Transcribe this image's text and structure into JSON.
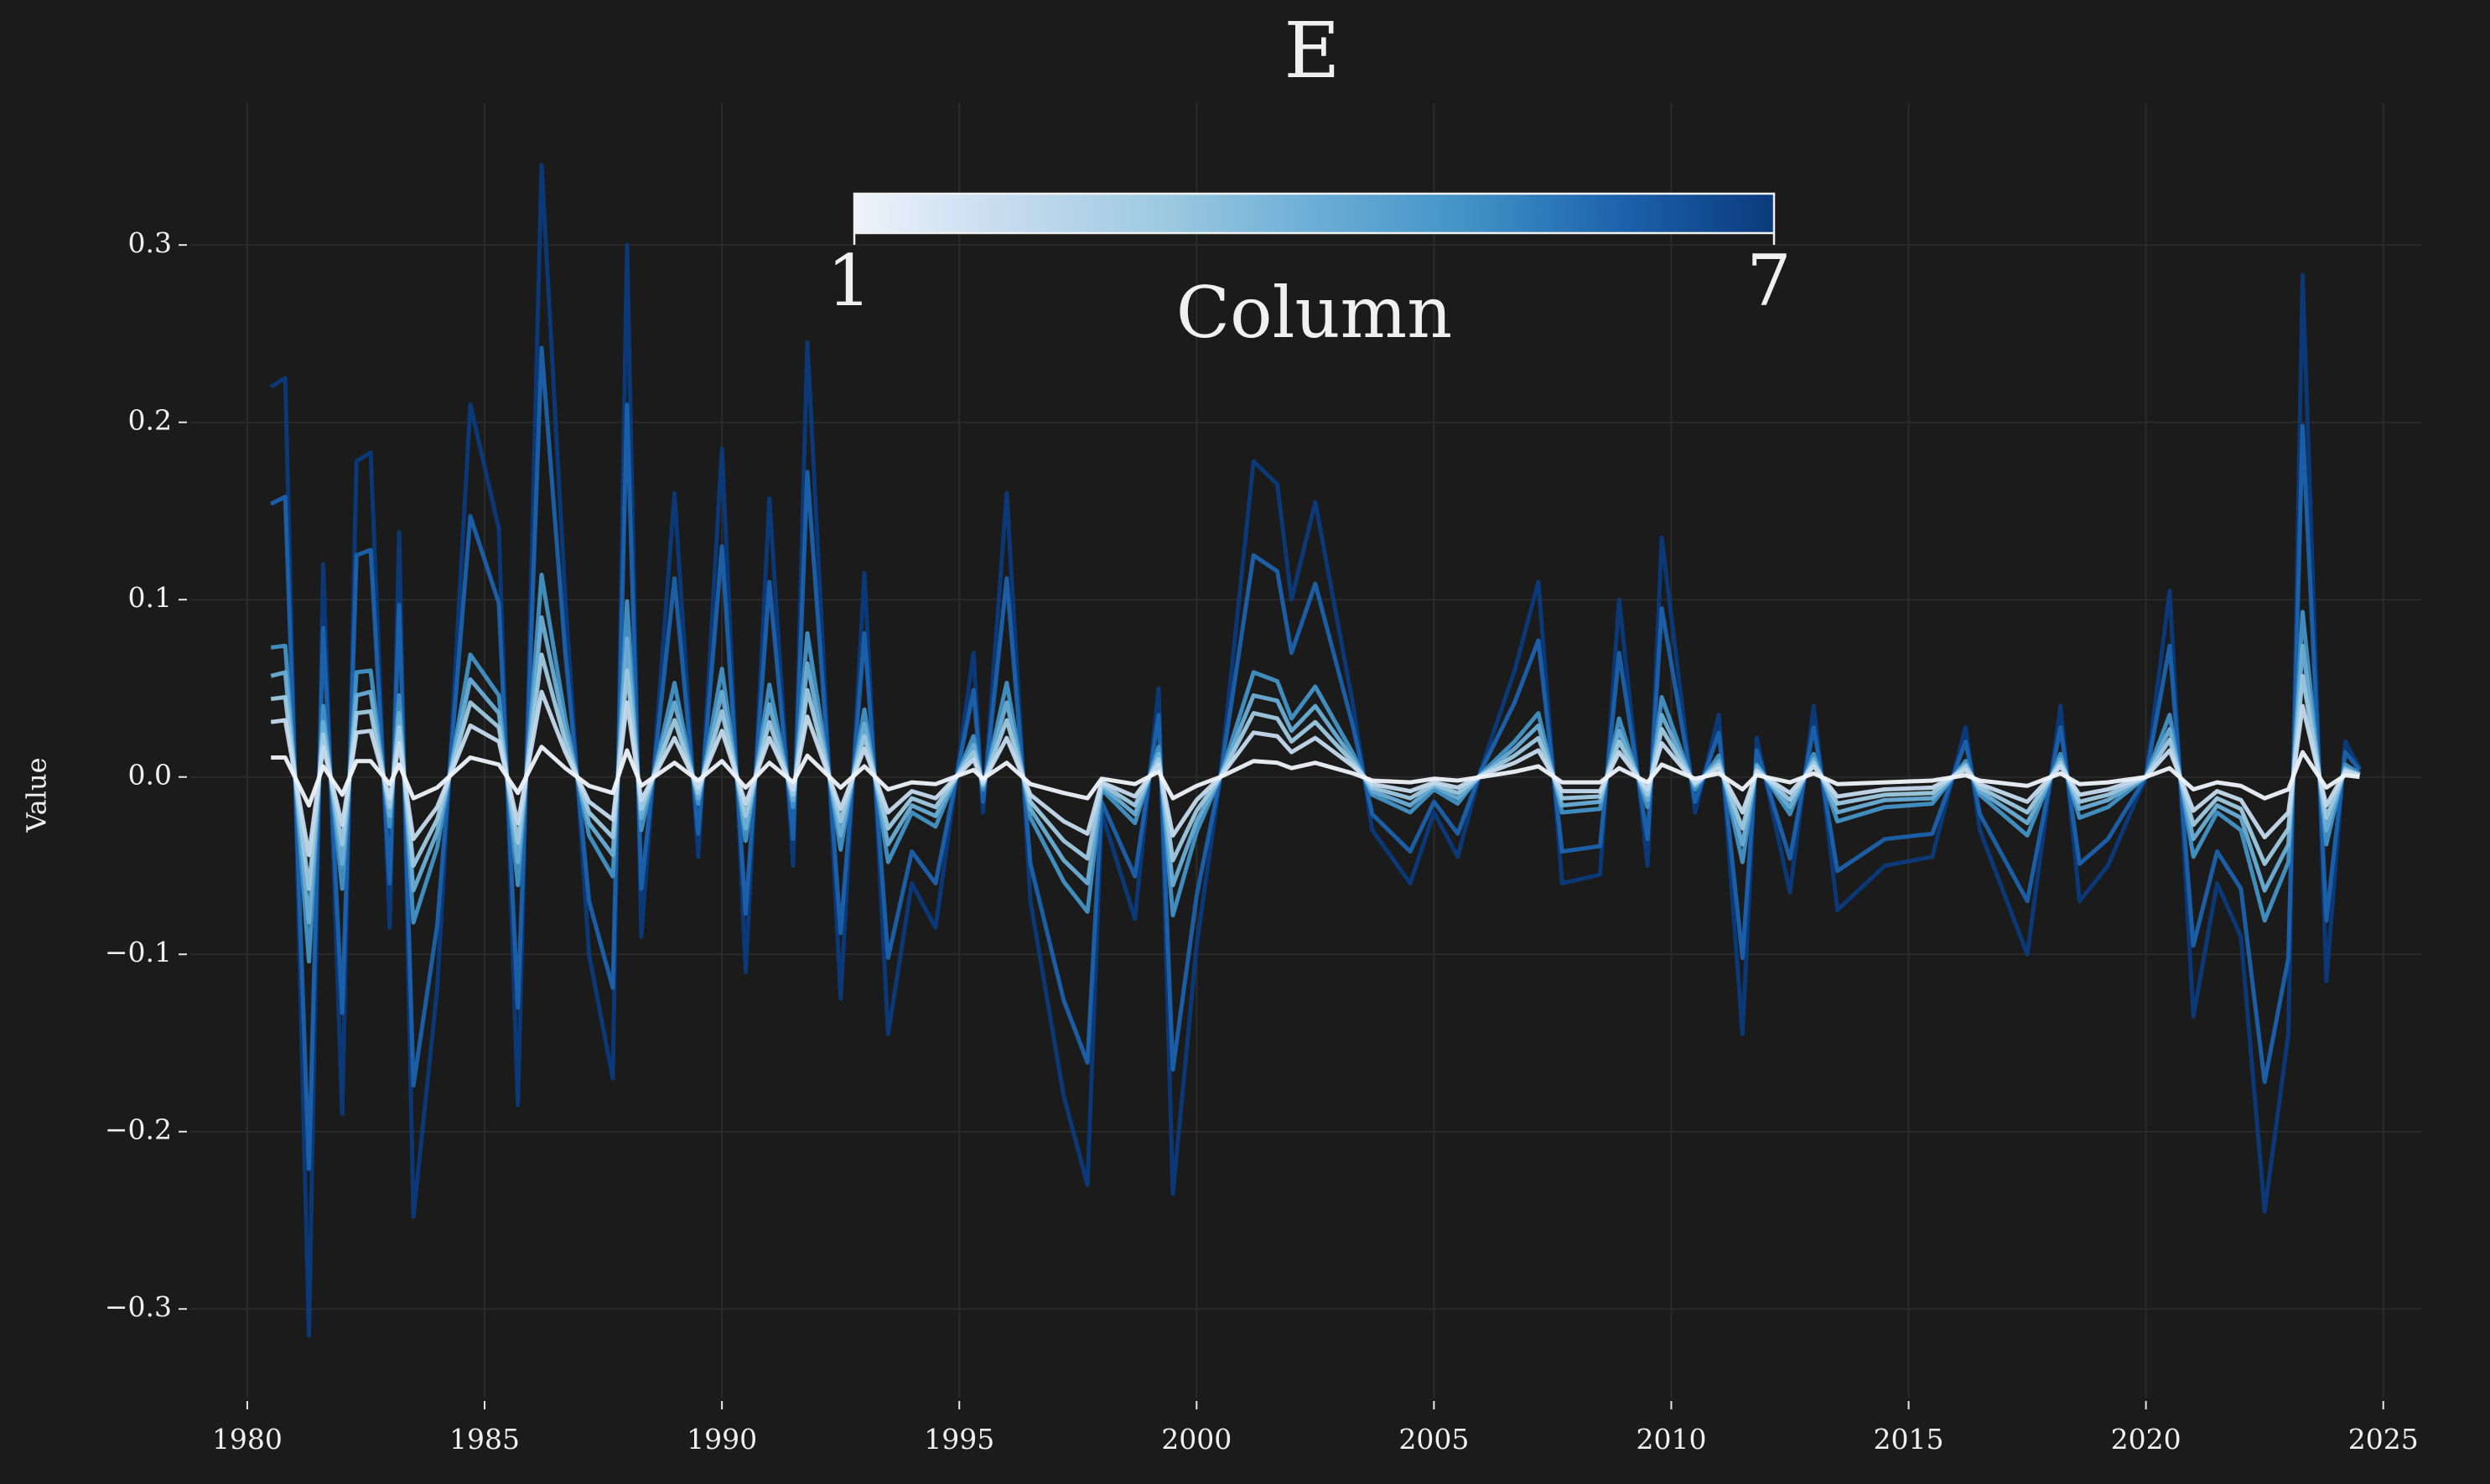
{
  "chart_data": {
    "type": "line",
    "title": "E",
    "ylabel": "Value",
    "x": [
      1980.5,
      1980.8,
      1981.3,
      1981.6,
      1982.0,
      1982.3,
      1982.6,
      1983.0,
      1983.2,
      1983.5,
      1984.0,
      1984.7,
      1985.3,
      1985.7,
      1986.2,
      1986.7,
      1987.2,
      1987.7,
      1988.0,
      1988.3,
      1989.0,
      1989.5,
      1990.0,
      1990.5,
      1991.0,
      1991.5,
      1991.8,
      1992.5,
      1993.0,
      1993.5,
      1994.0,
      1994.5,
      1995.3,
      1995.5,
      1996.0,
      1996.5,
      1997.2,
      1997.7,
      1998.0,
      1998.7,
      1999.2,
      1999.5,
      2000.0,
      2000.5,
      2001.2,
      2001.7,
      2002.0,
      2002.5,
      2003.3,
      2003.7,
      2004.5,
      2005.0,
      2005.5,
      2006.0,
      2006.7,
      2007.2,
      2007.7,
      2008.5,
      2008.9,
      2009.5,
      2009.8,
      2010.5,
      2011.0,
      2011.5,
      2011.8,
      2012.5,
      2013.0,
      2013.5,
      2014.5,
      2015.5,
      2016.2,
      2016.5,
      2017.5,
      2018.2,
      2018.6,
      2019.2,
      2020.0,
      2020.5,
      2021.0,
      2021.5,
      2022.0,
      2022.5,
      2023.0,
      2023.3,
      2023.8,
      2024.2,
      2024.5
    ],
    "series": [
      {
        "color": "#eef4fb",
        "values": [
          0.011,
          0.011,
          -0.016,
          0.006,
          -0.01,
          0.009,
          0.009,
          -0.004,
          0.007,
          -0.012,
          -0.006,
          0.011,
          0.007,
          -0.009,
          0.017,
          0.005,
          -0.005,
          -0.009,
          0.015,
          -0.005,
          0.008,
          -0.002,
          0.009,
          -0.006,
          0.008,
          -0.003,
          0.012,
          -0.006,
          0.006,
          -0.007,
          -0.003,
          -0.004,
          0.004,
          -0.001,
          0.008,
          -0.004,
          -0.009,
          -0.012,
          -0.001,
          -0.004,
          0.003,
          -0.012,
          -0.005,
          0,
          0.009,
          0.008,
          0.005,
          0.008,
          0.002,
          -0.002,
          -0.003,
          -0.001,
          -0.002,
          0,
          0.003,
          0.006,
          -0.003,
          -0.003,
          0.005,
          -0.003,
          0.007,
          -0.001,
          0.002,
          -0.007,
          0.001,
          -0.003,
          0.002,
          -0.004,
          -0.003,
          -0.002,
          0.001,
          -0.002,
          -0.005,
          0.002,
          -0.004,
          -0.003,
          0,
          0.005,
          -0.007,
          -0.003,
          -0.005,
          -0.012,
          -0.007,
          0.014,
          -0.006,
          0.001,
          0
        ]
      },
      {
        "color": "#c6dbef",
        "values": [
          0.031,
          0.032,
          -0.044,
          0.017,
          -0.027,
          0.025,
          0.026,
          -0.012,
          0.019,
          -0.035,
          -0.017,
          0.029,
          0.02,
          -0.026,
          0.048,
          0.014,
          -0.014,
          -0.024,
          0.042,
          -0.013,
          0.022,
          -0.006,
          0.026,
          -0.015,
          0.022,
          -0.007,
          0.034,
          -0.018,
          0.016,
          -0.02,
          -0.008,
          -0.012,
          0.01,
          -0.003,
          0.022,
          -0.01,
          -0.025,
          -0.032,
          -0.003,
          -0.011,
          0.007,
          -0.033,
          -0.013,
          0,
          0.025,
          0.023,
          0.014,
          0.022,
          0.006,
          -0.004,
          -0.008,
          -0.003,
          -0.006,
          0.001,
          0.008,
          0.015,
          -0.008,
          -0.008,
          0.014,
          -0.007,
          0.019,
          -0.003,
          0.005,
          -0.02,
          0.003,
          -0.009,
          0.006,
          -0.011,
          -0.007,
          -0.006,
          0.004,
          -0.004,
          -0.014,
          0.006,
          -0.01,
          -0.007,
          0,
          0.015,
          -0.019,
          -0.008,
          -0.013,
          -0.034,
          -0.02,
          0.04,
          -0.016,
          0.003,
          0.001
        ]
      },
      {
        "color": "#9ecae1",
        "values": [
          0.044,
          0.045,
          -0.063,
          0.024,
          -0.038,
          0.036,
          0.037,
          -0.017,
          0.028,
          -0.05,
          -0.024,
          0.042,
          0.028,
          -0.037,
          0.069,
          0.02,
          -0.02,
          -0.034,
          0.06,
          -0.018,
          0.032,
          -0.009,
          0.037,
          -0.022,
          0.031,
          -0.01,
          0.049,
          -0.025,
          0.023,
          -0.029,
          -0.012,
          -0.017,
          0.014,
          -0.004,
          0.032,
          -0.014,
          -0.036,
          -0.046,
          -0.004,
          -0.016,
          0.01,
          -0.047,
          -0.019,
          0,
          0.036,
          0.033,
          0.02,
          0.031,
          0.008,
          -0.006,
          -0.012,
          -0.004,
          -0.009,
          0.001,
          0.012,
          0.022,
          -0.012,
          -0.011,
          0.02,
          -0.01,
          0.027,
          -0.004,
          0.007,
          -0.029,
          0.004,
          -0.013,
          0.008,
          -0.015,
          -0.01,
          -0.009,
          0.006,
          -0.006,
          -0.02,
          0.008,
          -0.014,
          -0.01,
          0,
          0.021,
          -0.027,
          -0.012,
          -0.018,
          -0.049,
          -0.029,
          0.057,
          -0.023,
          0.004,
          0.001
        ]
      },
      {
        "color": "#6baed6",
        "values": [
          0.057,
          0.059,
          -0.082,
          0.031,
          -0.049,
          0.046,
          0.048,
          -0.022,
          0.036,
          -0.064,
          -0.031,
          0.055,
          0.036,
          -0.048,
          0.09,
          0.026,
          -0.026,
          -0.044,
          0.078,
          -0.023,
          0.042,
          -0.012,
          0.048,
          -0.029,
          0.041,
          -0.013,
          0.064,
          -0.033,
          0.03,
          -0.038,
          -0.016,
          -0.022,
          0.018,
          -0.005,
          0.042,
          -0.018,
          -0.047,
          -0.06,
          -0.005,
          -0.021,
          0.013,
          -0.061,
          -0.025,
          0,
          0.046,
          0.043,
          0.026,
          0.04,
          0.01,
          -0.008,
          -0.016,
          -0.005,
          -0.012,
          0.001,
          0.016,
          0.029,
          -0.016,
          -0.014,
          0.026,
          -0.013,
          0.035,
          -0.005,
          0.009,
          -0.038,
          0.006,
          -0.017,
          0.01,
          -0.02,
          -0.013,
          -0.012,
          0.007,
          -0.008,
          -0.026,
          0.01,
          -0.018,
          -0.013,
          0,
          0.027,
          -0.035,
          -0.016,
          -0.023,
          -0.064,
          -0.038,
          0.074,
          -0.03,
          0.005,
          0.001
        ]
      },
      {
        "color": "#4292c6",
        "values": [
          0.073,
          0.074,
          -0.104,
          0.04,
          -0.063,
          0.059,
          0.06,
          -0.028,
          0.046,
          -0.082,
          -0.04,
          0.069,
          0.046,
          -0.061,
          0.114,
          0.033,
          -0.033,
          -0.056,
          0.099,
          -0.03,
          0.053,
          -0.015,
          0.061,
          -0.036,
          0.052,
          -0.017,
          0.081,
          -0.041,
          0.038,
          -0.048,
          -0.02,
          -0.028,
          0.023,
          -0.007,
          0.053,
          -0.023,
          -0.059,
          -0.076,
          -0.007,
          -0.026,
          0.017,
          -0.078,
          -0.031,
          0,
          0.059,
          0.054,
          0.033,
          0.051,
          0.013,
          -0.01,
          -0.02,
          -0.007,
          -0.015,
          0.002,
          0.02,
          0.036,
          -0.02,
          -0.018,
          0.033,
          -0.017,
          0.045,
          -0.007,
          0.012,
          -0.048,
          0.007,
          -0.021,
          0.013,
          -0.025,
          -0.017,
          -0.015,
          0.009,
          -0.01,
          -0.033,
          0.013,
          -0.023,
          -0.017,
          0,
          0.035,
          -0.045,
          -0.02,
          -0.03,
          -0.081,
          -0.048,
          0.093,
          -0.038,
          0.007,
          0.002
        ]
      },
      {
        "color": "#1c62ad",
        "values": [
          0.154,
          0.158,
          -0.221,
          0.084,
          -0.133,
          0.125,
          0.128,
          -0.06,
          0.097,
          -0.174,
          -0.084,
          0.147,
          0.098,
          -0.13,
          0.242,
          0.07,
          -0.07,
          -0.119,
          0.21,
          -0.063,
          0.112,
          -0.032,
          0.13,
          -0.077,
          0.11,
          -0.035,
          0.172,
          -0.088,
          0.081,
          -0.102,
          -0.042,
          -0.06,
          0.049,
          -0.014,
          0.112,
          -0.049,
          -0.126,
          -0.161,
          -0.014,
          -0.056,
          0.035,
          -0.165,
          -0.067,
          0,
          0.125,
          0.116,
          0.07,
          0.109,
          0.028,
          -0.021,
          -0.042,
          -0.014,
          -0.032,
          0.004,
          0.042,
          0.077,
          -0.042,
          -0.039,
          0.07,
          -0.035,
          0.095,
          -0.014,
          0.025,
          -0.102,
          0.015,
          -0.046,
          0.028,
          -0.053,
          -0.035,
          -0.032,
          0.02,
          -0.021,
          -0.07,
          0.028,
          -0.049,
          -0.035,
          0,
          0.074,
          -0.095,
          -0.042,
          -0.063,
          -0.172,
          -0.102,
          0.198,
          -0.081,
          0.014,
          0.004
        ]
      },
      {
        "color": "#0b3a7c",
        "values": [
          0.22,
          0.225,
          -0.315,
          0.12,
          -0.19,
          0.178,
          0.183,
          -0.085,
          0.138,
          -0.248,
          -0.12,
          0.21,
          0.14,
          -0.185,
          0.345,
          0.1,
          -0.1,
          -0.17,
          0.3,
          -0.09,
          0.16,
          -0.045,
          0.185,
          -0.11,
          0.157,
          -0.05,
          0.245,
          -0.125,
          0.115,
          -0.145,
          -0.06,
          -0.085,
          0.07,
          -0.02,
          0.16,
          -0.07,
          -0.18,
          -0.23,
          -0.02,
          -0.08,
          0.05,
          -0.235,
          -0.095,
          0.0,
          0.178,
          0.165,
          0.1,
          0.155,
          0.04,
          -0.03,
          -0.06,
          -0.02,
          -0.045,
          0.005,
          0.06,
          0.11,
          -0.06,
          -0.055,
          0.1,
          -0.05,
          0.135,
          -0.02,
          0.035,
          -0.145,
          0.022,
          -0.065,
          0.04,
          -0.075,
          -0.05,
          -0.045,
          0.028,
          -0.03,
          -0.1,
          0.04,
          -0.07,
          -0.05,
          0.0,
          0.105,
          -0.135,
          -0.06,
          -0.09,
          -0.245,
          -0.145,
          0.283,
          -0.115,
          0.02,
          0.005
        ]
      }
    ],
    "xlim": [
      1978.8,
      2025.8
    ],
    "xticks": [
      1980,
      1985,
      1990,
      1995,
      2000,
      2005,
      2010,
      2015,
      2020,
      2025
    ],
    "ylim": [
      -0.35,
      0.38
    ],
    "yticks": [
      {
        "value": -0.3,
        "label": "−0.3"
      },
      {
        "value": -0.2,
        "label": "−0.2"
      },
      {
        "value": -0.1,
        "label": "−0.1"
      },
      {
        "value": 0,
        "label": "0.0"
      },
      0.1,
      0.2,
      0.3
    ],
    "grid": true,
    "colorbar": {
      "label": "Column",
      "lim": [
        1,
        7
      ],
      "ticks": [
        1,
        7
      ]
    }
  }
}
